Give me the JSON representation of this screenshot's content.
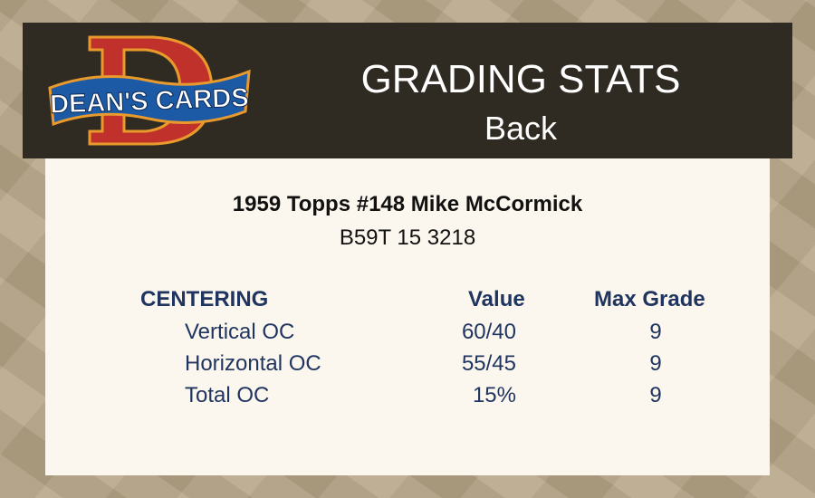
{
  "header": {
    "logo_text": "DEAN'S CARDS",
    "title": "GRADING STATS",
    "subtitle": "Back"
  },
  "card": {
    "name": "1959 Topps #148 Mike McCormick",
    "cert": "B59T 15 3218"
  },
  "table": {
    "headers": [
      "CENTERING",
      "Value",
      "Max Grade"
    ],
    "rows": [
      {
        "label": "Vertical OC",
        "value": "60/40",
        "max_grade": "9"
      },
      {
        "label": "Horizontal OC",
        "value": "55/45",
        "max_grade": "9"
      },
      {
        "label": "Total OC",
        "value": "15%",
        "max_grade": "9"
      }
    ]
  },
  "colors": {
    "header_bg": "#2f2a22",
    "panel_bg": "#fcf7ee",
    "text_navy": "#1f3560",
    "logo_red": "#c0312b",
    "logo_blue": "#1d5aa6",
    "logo_gold": "#e89a2c"
  }
}
